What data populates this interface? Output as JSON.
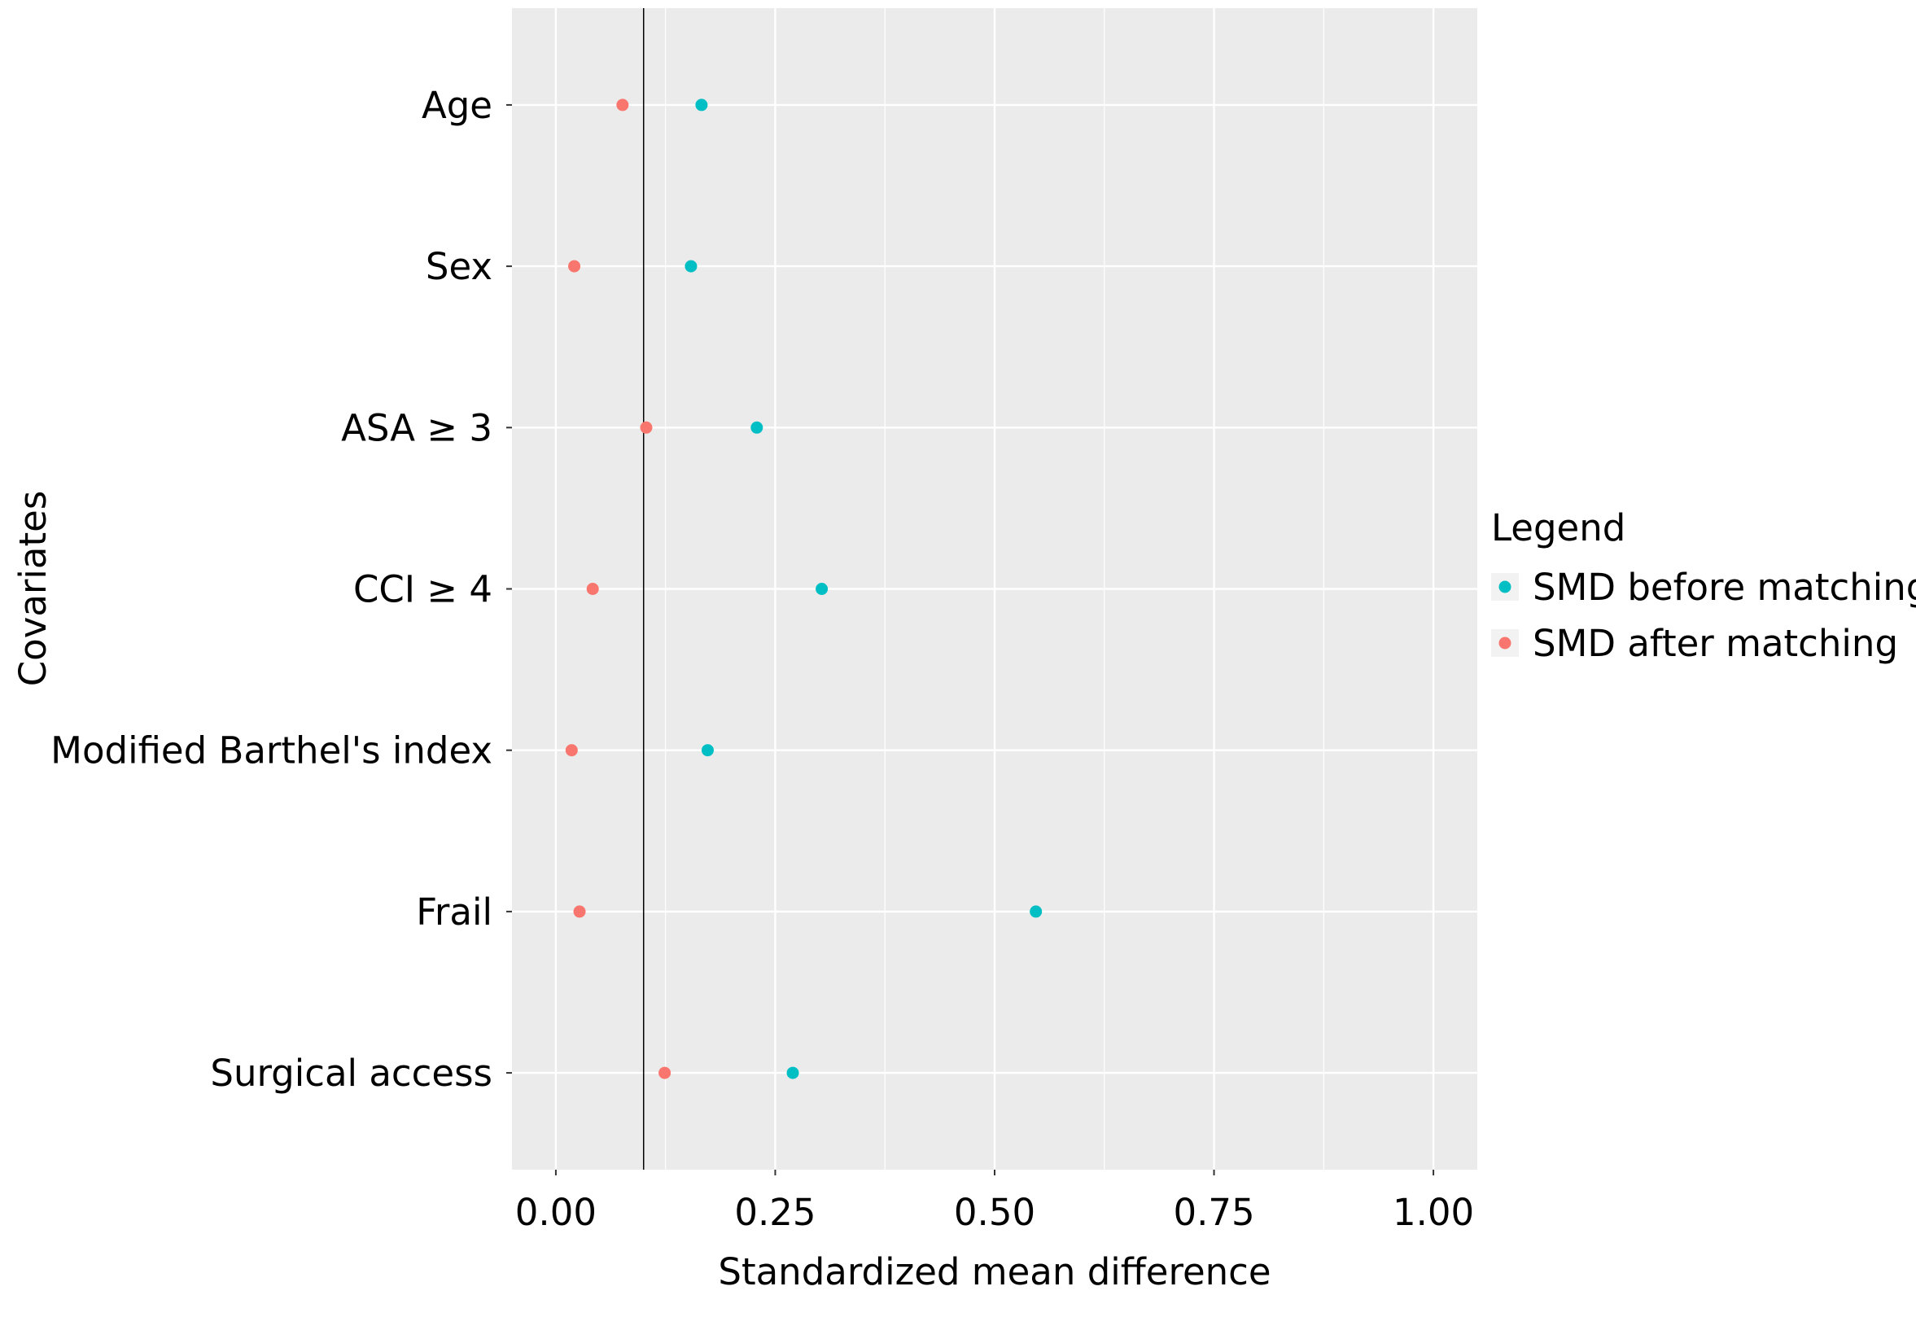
{
  "chart_data": {
    "type": "scatter",
    "title": "",
    "xlabel": "Standardized mean difference",
    "ylabel": "Covariates",
    "xlim": [
      -0.05,
      1.05
    ],
    "xticks": [
      "0.00",
      "0.25",
      "0.50",
      "0.75",
      "1.00"
    ],
    "xtick_values": [
      0,
      0.25,
      0.5,
      0.75,
      1.0
    ],
    "reference_line_x": 0.1,
    "grid": true,
    "categories": [
      "Age",
      "Sex",
      "ASA ≥ 3",
      "CCI ≥ 4",
      "Modified Barthel's index",
      "Frail",
      "Surgical access"
    ],
    "series": [
      {
        "name": "SMD before matching",
        "color": "#00BFC4",
        "values": [
          0.166,
          0.154,
          0.229,
          0.303,
          0.173,
          0.547,
          0.27
        ]
      },
      {
        "name": "SMD after matching",
        "color": "#F8766D",
        "values": [
          0.076,
          0.021,
          0.103,
          0.042,
          0.018,
          0.027,
          0.124
        ]
      }
    ],
    "legend": {
      "title": "Legend",
      "placement": "right"
    }
  }
}
